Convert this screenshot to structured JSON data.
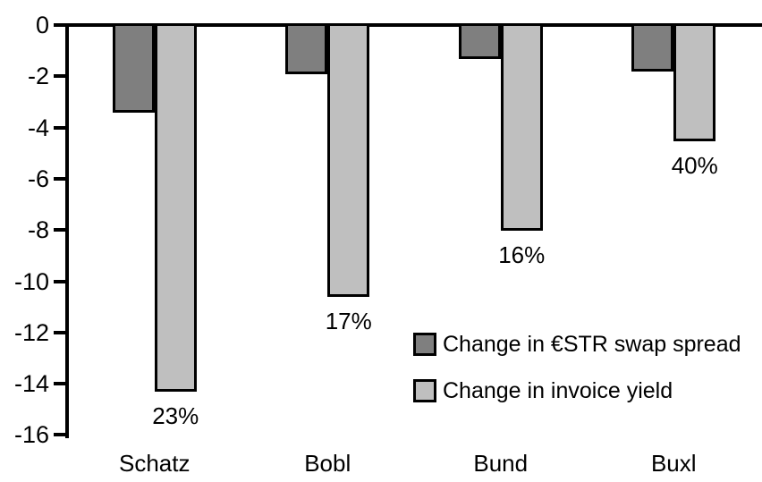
{
  "chart_data": {
    "type": "bar",
    "title": "",
    "orientation": "vertical",
    "categories": [
      "Schatz",
      "Bobl",
      "Bund",
      "Buxl"
    ],
    "series": [
      {
        "name": "Change in €STR swap spread",
        "color": "#7f7f7f",
        "values": [
          -3.3,
          -1.8,
          -1.2,
          -1.7
        ]
      },
      {
        "name": "Change in invoice yield",
        "color": "#bfbfbf",
        "values": [
          -14.2,
          -10.5,
          -7.9,
          -4.4
        ]
      }
    ],
    "bar_labels": {
      "attached_to_series": "Change in invoice yield",
      "values": [
        "23%",
        "17%",
        "16%",
        "40%"
      ]
    },
    "y_axis": {
      "min": -16,
      "max": 0,
      "tick_step": 2,
      "ticks": [
        0,
        -2,
        -4,
        -6,
        -8,
        -10,
        -12,
        -14,
        -16
      ],
      "label": ""
    },
    "x_axis": {
      "label": ""
    },
    "grid": false,
    "legend_position": "inside-right",
    "colors": {
      "axis": "#000000",
      "bar_border": "#000000",
      "background": "#ffffff",
      "text": "#000000"
    }
  }
}
